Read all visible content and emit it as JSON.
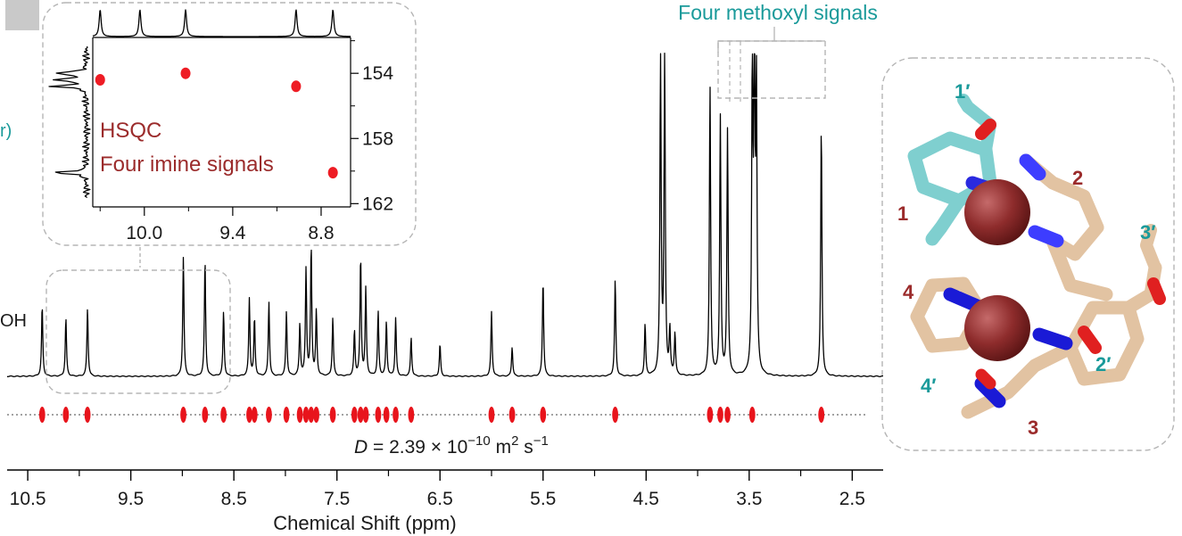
{
  "panel_letter": "",
  "left_partial_label_1": "r)",
  "left_partial_label_2": "OH",
  "methoxyl_label": "Four methoxyl signals",
  "diffusion_label": {
    "D_italic": "D",
    "text": " = 2.39 × 10",
    "exponent": "−10",
    "units": " m",
    "units_exp1": "2",
    "units_tail": " s",
    "units_exp2": "−1"
  },
  "chart_data": [
    {
      "type": "line",
      "name": "main-1H-spectrum",
      "xlabel": "Chemical Shift (ppm)",
      "xlim": [
        10.7,
        2.2
      ],
      "reversed_axis": true,
      "x_ticks": [
        "10.5",
        "9.5",
        "8.5",
        "7.5",
        "6.5",
        "5.5",
        "4.5",
        "3.5",
        "2.5"
      ],
      "x_tick_values": [
        10.5,
        9.5,
        8.5,
        7.5,
        6.5,
        5.5,
        4.5,
        3.5,
        2.5
      ],
      "peaks": [
        {
          "ppm": 10.36,
          "h": 0.22
        },
        {
          "ppm": 10.13,
          "h": 0.18
        },
        {
          "ppm": 9.92,
          "h": 0.21
        },
        {
          "ppm": 8.99,
          "h": 0.37
        },
        {
          "ppm": 8.78,
          "h": 0.36
        },
        {
          "ppm": 8.6,
          "h": 0.2
        },
        {
          "ppm": 8.35,
          "h": 0.24
        },
        {
          "ppm": 8.3,
          "h": 0.18
        },
        {
          "ppm": 8.16,
          "h": 0.23
        },
        {
          "ppm": 7.99,
          "h": 0.2
        },
        {
          "ppm": 7.86,
          "h": 0.16
        },
        {
          "ppm": 7.8,
          "h": 0.33
        },
        {
          "ppm": 7.75,
          "h": 0.4
        },
        {
          "ppm": 7.7,
          "h": 0.2
        },
        {
          "ppm": 7.54,
          "h": 0.18
        },
        {
          "ppm": 7.33,
          "h": 0.14
        },
        {
          "ppm": 7.27,
          "h": 0.37
        },
        {
          "ppm": 7.22,
          "h": 0.27
        },
        {
          "ppm": 7.1,
          "h": 0.2
        },
        {
          "ppm": 7.02,
          "h": 0.17
        },
        {
          "ppm": 6.93,
          "h": 0.18
        },
        {
          "ppm": 6.78,
          "h": 0.12
        },
        {
          "ppm": 6.5,
          "h": 0.1
        },
        {
          "ppm": 6.0,
          "h": 0.2
        },
        {
          "ppm": 5.8,
          "h": 0.09
        },
        {
          "ppm": 5.5,
          "h": 0.3
        },
        {
          "ppm": 4.8,
          "h": 0.3
        },
        {
          "ppm": 4.51,
          "h": 0.16
        },
        {
          "ppm": 4.36,
          "h": 1.0
        },
        {
          "ppm": 4.32,
          "h": 1.0
        },
        {
          "ppm": 4.27,
          "h": 0.14
        },
        {
          "ppm": 4.22,
          "h": 0.13
        },
        {
          "ppm": 3.88,
          "h": 0.9
        },
        {
          "ppm": 3.78,
          "h": 0.8
        },
        {
          "ppm": 3.71,
          "h": 0.76
        },
        {
          "ppm": 3.47,
          "h": 0.9
        },
        {
          "ppm": 3.45,
          "h": 1.0
        },
        {
          "ppm": 3.43,
          "h": 0.88
        },
        {
          "ppm": 2.8,
          "h": 0.78
        }
      ]
    },
    {
      "type": "scatter",
      "name": "DOSY-cross-peaks",
      "x_values_ppm": [
        10.36,
        10.13,
        9.92,
        8.99,
        8.78,
        8.6,
        8.35,
        8.3,
        8.16,
        7.99,
        7.86,
        7.8,
        7.75,
        7.7,
        7.54,
        7.33,
        7.27,
        7.22,
        7.1,
        7.02,
        6.93,
        6.78,
        6.0,
        5.8,
        5.5,
        4.8,
        3.88,
        3.78,
        3.71,
        3.47,
        2.8
      ],
      "guide": "dotted line"
    },
    {
      "type": "scatter",
      "name": "HSQC-inset",
      "labels": [
        "HSQC",
        "Four imine signals"
      ],
      "x_ticks": [
        "10.0",
        "9.4",
        "8.8"
      ],
      "x_tick_values": [
        10.0,
        9.4,
        8.8
      ],
      "xlim": [
        10.35,
        8.6
      ],
      "y_ticks": [
        "154",
        "158",
        "162"
      ],
      "y_tick_values": [
        154,
        158,
        162
      ],
      "ylim": [
        151.8,
        162.2
      ],
      "points": [
        {
          "x": 10.3,
          "y": 154.4
        },
        {
          "x": 9.72,
          "y": 154.0
        },
        {
          "x": 8.97,
          "y": 154.8
        },
        {
          "x": 8.72,
          "y": 160.1
        }
      ],
      "top_projection_ppm": [
        10.3,
        10.03,
        9.72,
        8.97,
        8.72
      ]
    }
  ],
  "structure": {
    "labels_maroon": [
      "1",
      "2",
      "3",
      "4"
    ],
    "labels_teal": [
      "1′",
      "2′",
      "3′",
      "4′"
    ]
  }
}
